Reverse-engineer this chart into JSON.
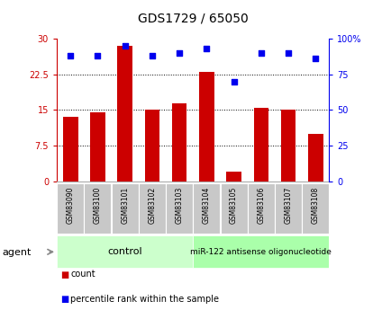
{
  "title": "GDS1729 / 65050",
  "categories": [
    "GSM83090",
    "GSM83100",
    "GSM83101",
    "GSM83102",
    "GSM83103",
    "GSM83104",
    "GSM83105",
    "GSM83106",
    "GSM83107",
    "GSM83108"
  ],
  "counts": [
    13.5,
    14.5,
    28.5,
    15.0,
    16.5,
    23.0,
    2.0,
    15.5,
    15.0,
    10.0
  ],
  "percentile_ranks": [
    88,
    88,
    95,
    88,
    90,
    93,
    70,
    90,
    90,
    86
  ],
  "ylim_left": [
    0,
    30
  ],
  "ylim_right": [
    0,
    100
  ],
  "yticks_left": [
    0,
    7.5,
    15,
    22.5,
    30
  ],
  "yticks_right": [
    0,
    25,
    50,
    75,
    100
  ],
  "ytick_labels_left": [
    "0",
    "7.5",
    "15",
    "22.5",
    "30"
  ],
  "ytick_labels_right": [
    "0",
    "25",
    "50",
    "75",
    "100%"
  ],
  "bar_color": "#cc0000",
  "dot_color": "#0000ee",
  "control_label": "control",
  "treatment_label": "miR-122 antisense oligonucleotide",
  "control_color": "#ccffcc",
  "treatment_color": "#aaffaa",
  "agent_label": "agent",
  "legend_count": "count",
  "legend_pct": "percentile rank within the sample",
  "background_color": "#ffffff",
  "tick_label_bg": "#c8c8c8",
  "grid_color": "#000000",
  "left_axis_color": "#cc0000",
  "right_axis_color": "#0000ee",
  "n_control": 5,
  "n_treatment": 5
}
